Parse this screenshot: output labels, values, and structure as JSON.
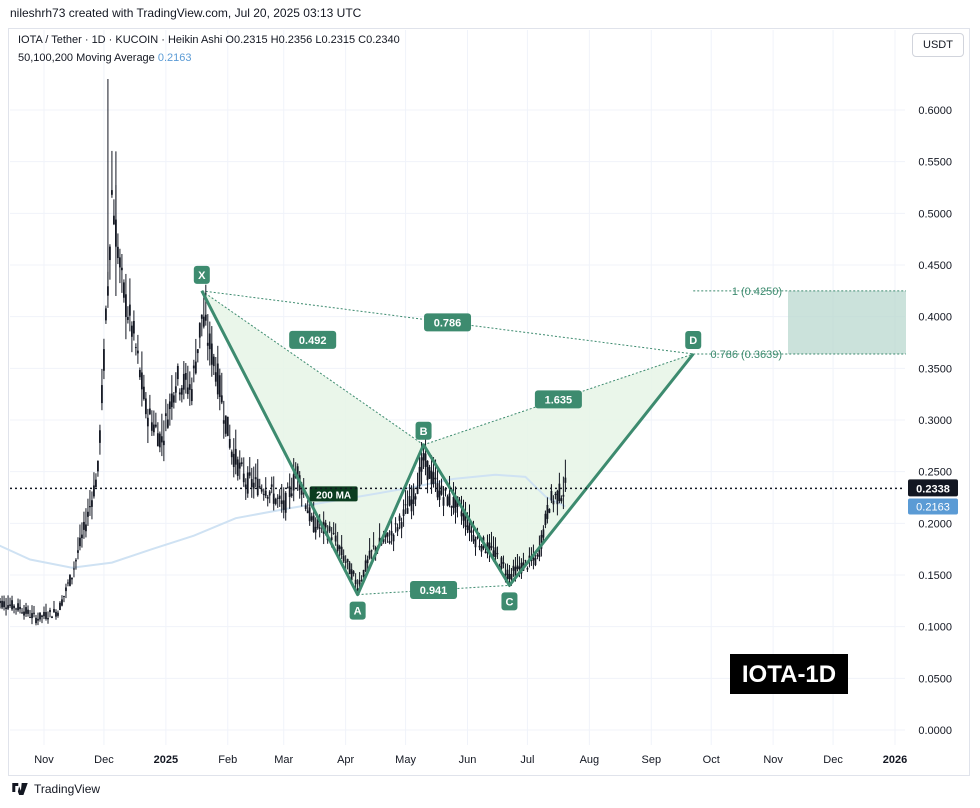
{
  "header": {
    "credit": "nileshrh73 created with TradingView.com, Jul 20, 2025 03:13 UTC"
  },
  "legend": {
    "symbol_line": "IOTA / Tether · 1D · KUCOIN · Heikin Ashi   O0.2315   H0.2356   L0.2315   C0.2340",
    "ma_label": "50,100,200 Moving Average",
    "ma_value": "0.2163"
  },
  "currency_button": "USDT",
  "footer": {
    "brand": "TradingView"
  },
  "colors": {
    "candle": "#131722",
    "pattern": "#3d8b6f",
    "pattern_fill": "#e6f4e6",
    "ma": "#cfe2f3",
    "ma_label_bg": "#0b3d1f",
    "zone": "#b5d6cc",
    "price_tag": "#131722",
    "ma_tag": "#5b9bd5"
  },
  "chart_data": {
    "type": "candlestick",
    "chart_style": "Heikin Ashi",
    "ylim": [
      0,
      0.65
    ],
    "y_ticks": [
      "0.0000",
      "0.0500",
      "0.1000",
      "0.1500",
      "0.2000",
      "0.2500",
      "0.3000",
      "0.3500",
      "0.4000",
      "0.4500",
      "0.5000",
      "0.5500",
      "0.6000"
    ],
    "x_ticks": [
      "Nov",
      "Dec",
      "2025",
      "Feb",
      "Mar",
      "Apr",
      "May",
      "Jun",
      "Jul",
      "Aug",
      "Sep",
      "Oct",
      "Nov",
      "Dec",
      "2026"
    ],
    "last_price": "0.2338",
    "ma_price": "0.2163",
    "harmonic_points": [
      {
        "label": "X",
        "date": "2025-01-19",
        "price": 0.425
      },
      {
        "label": "A",
        "date": "2025-04-07",
        "price": 0.131
      },
      {
        "label": "B",
        "date": "2025-05-10",
        "price": 0.276
      },
      {
        "label": "C",
        "date": "2025-06-22",
        "price": 0.14
      },
      {
        "label": "D",
        "date": "2025-09-22",
        "price": 0.3639
      }
    ],
    "ratios": [
      {
        "label": "0.492",
        "between": [
          "X",
          "B"
        ]
      },
      {
        "label": "0.941",
        "between": [
          "A",
          "C"
        ]
      },
      {
        "label": "1.635",
        "between": [
          "B",
          "D"
        ]
      },
      {
        "label": "0.786",
        "between": [
          "X",
          "D"
        ]
      }
    ],
    "target_zone": {
      "top_label": "1 (0.4250)",
      "top": 0.425,
      "bottom_label": "0.786 (0.3639)",
      "bottom": 0.3639
    },
    "ma_line_label": "200 MA",
    "ma_line": [
      [
        "2024-10-08",
        0.18
      ],
      [
        "2024-10-25",
        0.165
      ],
      [
        "2024-11-15",
        0.157
      ],
      [
        "2024-12-05",
        0.162
      ],
      [
        "2024-12-25",
        0.175
      ],
      [
        "2025-01-15",
        0.188
      ],
      [
        "2025-02-05",
        0.205
      ],
      [
        "2025-03-05",
        0.215
      ],
      [
        "2025-04-05",
        0.225
      ],
      [
        "2025-05-05",
        0.235
      ],
      [
        "2025-05-25",
        0.243
      ],
      [
        "2025-06-15",
        0.247
      ],
      [
        "2025-06-30",
        0.245
      ],
      [
        "2025-07-10",
        0.226
      ],
      [
        "2025-07-20",
        0.2163
      ]
    ],
    "price_path": [
      [
        "2024-10-08",
        0.125
      ],
      [
        "2024-10-20",
        0.118
      ],
      [
        "2024-10-28",
        0.108
      ],
      [
        "2024-11-08",
        0.115
      ],
      [
        "2024-11-15",
        0.15
      ],
      [
        "2024-11-22",
        0.2
      ],
      [
        "2024-11-28",
        0.25
      ],
      [
        "2024-12-03",
        0.43
      ],
      [
        "2024-12-05",
        0.52
      ],
      [
        "2024-12-10",
        0.43
      ],
      [
        "2024-12-16",
        0.38
      ],
      [
        "2024-12-22",
        0.31
      ],
      [
        "2024-12-30",
        0.28
      ],
      [
        "2025-01-06",
        0.34
      ],
      [
        "2025-01-14",
        0.33
      ],
      [
        "2025-01-19",
        0.4
      ],
      [
        "2025-01-26",
        0.35
      ],
      [
        "2025-02-03",
        0.27
      ],
      [
        "2025-02-10",
        0.24
      ],
      [
        "2025-02-20",
        0.235
      ],
      [
        "2025-03-01",
        0.215
      ],
      [
        "2025-03-08",
        0.25
      ],
      [
        "2025-03-15",
        0.2
      ],
      [
        "2025-03-25",
        0.19
      ],
      [
        "2025-04-07",
        0.14
      ],
      [
        "2025-04-15",
        0.175
      ],
      [
        "2025-04-25",
        0.19
      ],
      [
        "2025-05-05",
        0.225
      ],
      [
        "2025-05-10",
        0.26
      ],
      [
        "2025-05-18",
        0.23
      ],
      [
        "2025-05-28",
        0.215
      ],
      [
        "2025-06-05",
        0.185
      ],
      [
        "2025-06-15",
        0.17
      ],
      [
        "2025-06-22",
        0.15
      ],
      [
        "2025-06-30",
        0.16
      ],
      [
        "2025-07-06",
        0.165
      ],
      [
        "2025-07-12",
        0.22
      ],
      [
        "2025-07-20",
        0.234
      ]
    ],
    "title_badge": "IOTA-1D"
  }
}
